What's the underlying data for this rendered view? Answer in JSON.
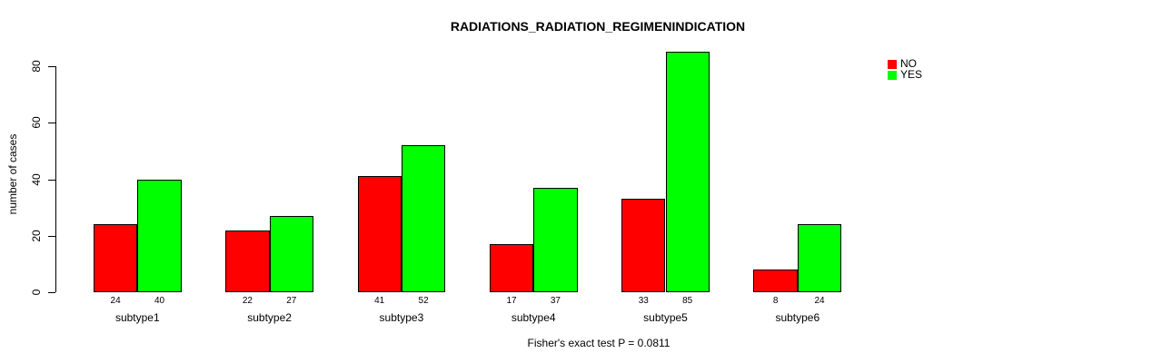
{
  "chart_data": {
    "type": "bar",
    "title": "RADIATIONS_RADIATION_REGIMENINDICATION",
    "ylabel": "number of cases",
    "xlabel": "",
    "categories": [
      "subtype1",
      "subtype2",
      "subtype3",
      "subtype4",
      "subtype5",
      "subtype6"
    ],
    "series": [
      {
        "name": "NO",
        "color": "#FF0000",
        "values": [
          24,
          22,
          41,
          17,
          33,
          8
        ]
      },
      {
        "name": "YES",
        "color": "#00FF00",
        "values": [
          40,
          27,
          52,
          37,
          85,
          24
        ]
      }
    ],
    "bar_value_labels": [
      [
        "24",
        "40"
      ],
      [
        "22",
        "27"
      ],
      [
        "41",
        "52"
      ],
      [
        "17",
        "37"
      ],
      [
        "33",
        "85"
      ],
      [
        "8",
        "24"
      ]
    ],
    "yticks": [
      "0",
      "20",
      "40",
      "60",
      "80"
    ],
    "ylim": [
      0,
      85
    ],
    "grid": false,
    "legend_position": "top-right",
    "annotation": "Fisher's exact test P = 0.0811"
  }
}
